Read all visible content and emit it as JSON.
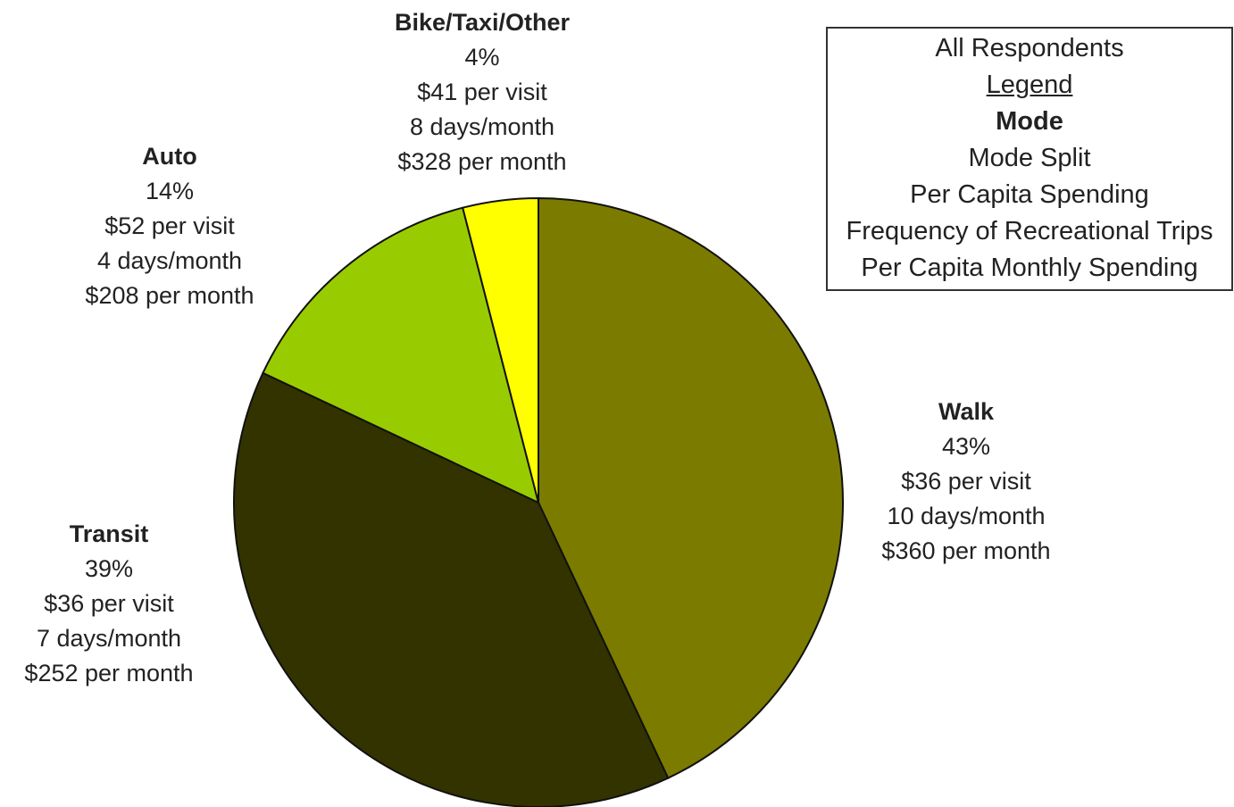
{
  "chart_data": {
    "type": "pie",
    "slices": [
      {
        "mode": "Walk",
        "share": 43,
        "share_label": "43%",
        "per_visit": "$36 per visit",
        "frequency": "10 days/month",
        "monthly": "$360 per month",
        "color": "#7b7b00"
      },
      {
        "mode": "Transit",
        "share": 39,
        "share_label": "39%",
        "per_visit": "$36 per visit",
        "frequency": "7 days/month",
        "monthly": "$252 per month",
        "color": "#333300"
      },
      {
        "mode": "Auto",
        "share": 14,
        "share_label": "14%",
        "per_visit": "$52 per visit",
        "frequency": "4 days/month",
        "monthly": "$208 per month",
        "color": "#99cc00"
      },
      {
        "mode": "Bike/Taxi/Other",
        "share": 4,
        "share_label": "4%",
        "per_visit": "$41 per visit",
        "frequency": "8 days/month",
        "monthly": "$328 per month",
        "color": "#ffff00"
      }
    ],
    "legend": {
      "title": "All Respondents",
      "heading": "Legend",
      "lines": [
        "Mode",
        "Mode Split",
        "Per Capita Spending",
        "Frequency of Recreational Trips",
        "Per Capita Monthly Spending"
      ],
      "placement": "top-right"
    }
  }
}
